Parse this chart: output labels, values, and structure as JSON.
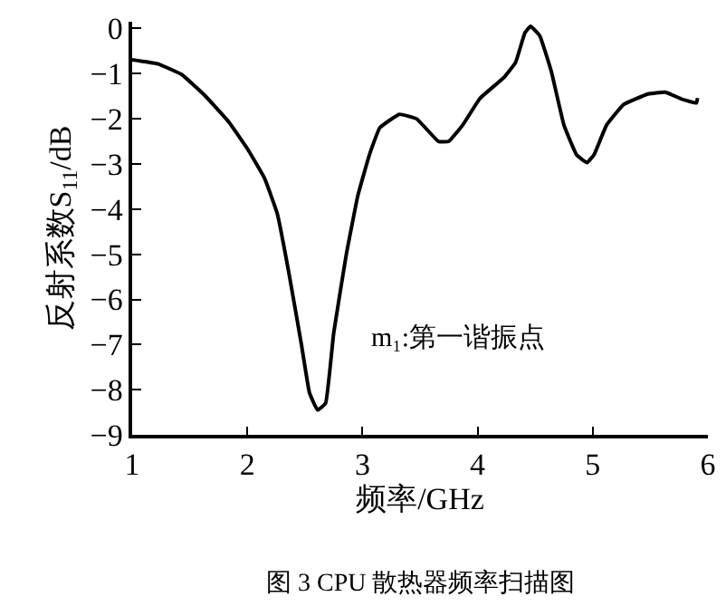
{
  "chart_data": {
    "type": "line",
    "xlabel": "频率/GHz",
    "ylabel": "反射系数S$_{11}$/dB",
    "x": [
      1.0,
      1.22,
      1.43,
      1.63,
      1.84,
      2.0,
      2.15,
      2.26,
      2.36,
      2.47,
      2.54,
      2.61,
      2.68,
      2.75,
      2.86,
      2.96,
      3.06,
      3.15,
      3.32,
      3.47,
      3.66,
      3.75,
      3.87,
      4.02,
      4.23,
      4.33,
      4.41,
      4.46,
      4.54,
      4.64,
      4.75,
      4.86,
      4.95,
      5.01,
      5.12,
      5.27,
      5.48,
      5.63,
      5.79,
      5.9,
      5.91
    ],
    "series": [
      {
        "color": "#000000",
        "values": [
          -0.69,
          -0.78,
          -1.02,
          -1.48,
          -2.07,
          -2.66,
          -3.32,
          -4.1,
          -5.4,
          -7.0,
          -8.07,
          -8.45,
          -8.3,
          -6.75,
          -5.0,
          -3.7,
          -2.8,
          -2.2,
          -1.9,
          -2.0,
          -2.5,
          -2.5,
          -2.14,
          -1.55,
          -1.08,
          -0.75,
          -0.1,
          0.05,
          -0.16,
          -0.95,
          -2.14,
          -2.8,
          -2.97,
          -2.8,
          -2.14,
          -1.68,
          -1.45,
          -1.41,
          -1.58,
          -1.65,
          -1.54
        ]
      }
    ],
    "xlim": [
      1,
      6
    ],
    "xticks": [
      1,
      2,
      3,
      4,
      5,
      6
    ],
    "ylim": [
      -9,
      0.15
    ],
    "yticks": [
      0,
      -1,
      -2,
      -3,
      -4,
      -5,
      -6,
      -7,
      -8,
      -9
    ],
    "grid": false,
    "marker": "none",
    "line_style": "solid",
    "annotations": [
      {
        "text": "m₁:第一谐振点",
        "x": 2.63,
        "y": -8.45
      },
      "图 3 CPU 散热器频率扫描图"
    ]
  }
}
